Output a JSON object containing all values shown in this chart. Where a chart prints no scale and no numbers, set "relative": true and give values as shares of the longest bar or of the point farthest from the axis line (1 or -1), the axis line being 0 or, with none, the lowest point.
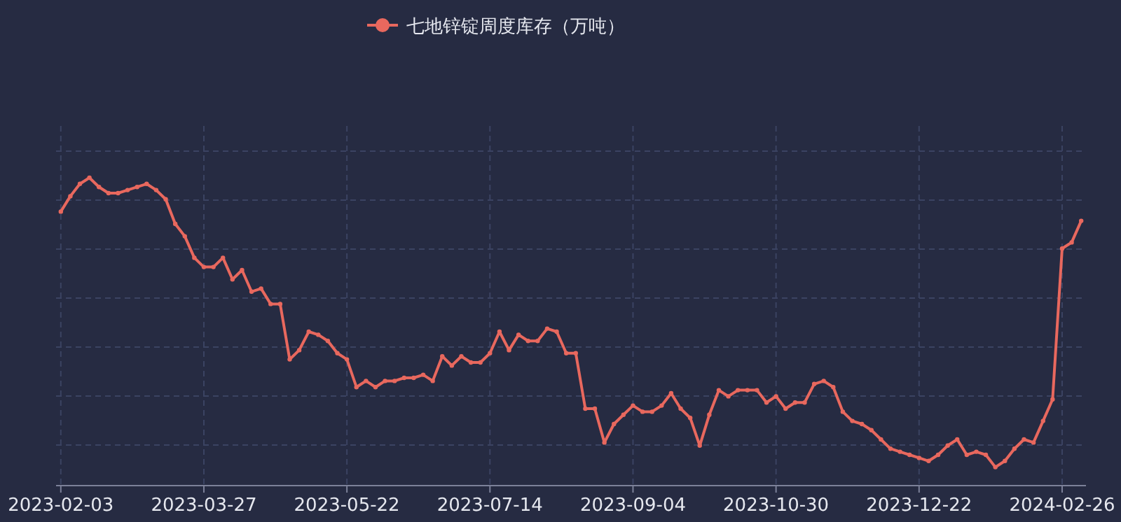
{
  "chart_data": {
    "type": "line",
    "relative": true,
    "grid": true,
    "legend": "top",
    "marker": "circle",
    "line_style": "solid",
    "categories": [
      "2023-02-03",
      null,
      null,
      null,
      null,
      null,
      null,
      null,
      null,
      null,
      null,
      null,
      null,
      null,
      null,
      "2023-03-27",
      null,
      null,
      null,
      null,
      null,
      null,
      null,
      null,
      null,
      null,
      null,
      null,
      null,
      null,
      "2023-05-22",
      null,
      null,
      null,
      null,
      null,
      null,
      null,
      null,
      null,
      null,
      null,
      null,
      null,
      null,
      "2023-07-14",
      null,
      null,
      null,
      null,
      null,
      null,
      null,
      null,
      null,
      null,
      null,
      null,
      null,
      null,
      "2023-09-04",
      null,
      null,
      null,
      null,
      null,
      null,
      null,
      null,
      null,
      null,
      null,
      null,
      null,
      null,
      "2023-10-30",
      null,
      null,
      null,
      null,
      null,
      null,
      null,
      null,
      null,
      null,
      null,
      null,
      null,
      null,
      "2023-12-22",
      null,
      null,
      null,
      null,
      null,
      null,
      null,
      null,
      null,
      null,
      null,
      null,
      null,
      null,
      "2024-02-26",
      null,
      null
    ],
    "series": [
      {
        "name": "七地锌锭周度库存（万吨）",
        "color": "#e8685e",
        "values": [
          0.89,
          0.94,
          0.98,
          1.0,
          0.97,
          0.95,
          0.95,
          0.96,
          0.97,
          0.98,
          0.96,
          0.93,
          0.85,
          0.81,
          0.74,
          0.71,
          0.71,
          0.74,
          0.67,
          0.7,
          0.63,
          0.64,
          0.59,
          0.59,
          0.41,
          0.44,
          0.5,
          0.49,
          0.47,
          0.43,
          0.41,
          0.32,
          0.34,
          0.32,
          0.34,
          0.34,
          0.35,
          0.35,
          0.36,
          0.34,
          0.42,
          0.39,
          0.42,
          0.4,
          0.4,
          0.43,
          0.5,
          0.44,
          0.49,
          0.47,
          0.47,
          0.51,
          0.5,
          0.43,
          0.43,
          0.25,
          0.25,
          0.14,
          0.2,
          0.23,
          0.26,
          0.24,
          0.24,
          0.26,
          0.3,
          0.25,
          0.22,
          0.13,
          0.23,
          0.31,
          0.29,
          0.31,
          0.31,
          0.31,
          0.27,
          0.29,
          0.25,
          0.27,
          0.27,
          0.33,
          0.34,
          0.32,
          0.24,
          0.21,
          0.2,
          0.18,
          0.15,
          0.12,
          0.11,
          0.1,
          0.09,
          0.08,
          0.1,
          0.13,
          0.15,
          0.1,
          0.11,
          0.1,
          0.06,
          0.08,
          0.12,
          0.15,
          0.14,
          0.21,
          0.28,
          0.77,
          0.79,
          0.86
        ]
      }
    ]
  }
}
